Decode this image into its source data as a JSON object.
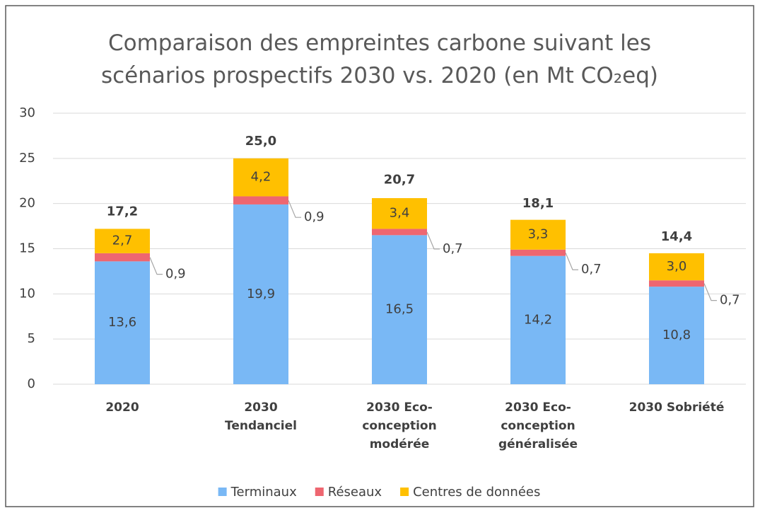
{
  "chart_data": {
    "type": "stacked-bar",
    "title": "Comparaison des empreintes carbone suivant les scénarios prospectifs 2030 vs. 2020 (en Mt CO₂eq)",
    "categories": [
      "2020",
      "2030 Tendanciel",
      "2030 Eco-conception modérée",
      "2030 Eco-conception généralisée",
      "2030 Sobriété"
    ],
    "series": [
      {
        "name": "Terminaux",
        "color": "#79b8f5",
        "values": [
          13.6,
          19.9,
          16.5,
          14.2,
          10.8
        ],
        "value_labels": [
          "13,6",
          "19,9",
          "16,5",
          "14,2",
          "10,8"
        ]
      },
      {
        "name": "Réseaux",
        "color": "#ee6670",
        "values": [
          0.9,
          0.9,
          0.7,
          0.7,
          0.7
        ],
        "value_labels": [
          "0,9",
          "0,9",
          "0,7",
          "0,7",
          "0,7"
        ]
      },
      {
        "name": "Centres de données",
        "color": "#ffc000",
        "values": [
          2.7,
          4.2,
          3.4,
          3.3,
          3.0
        ],
        "value_labels": [
          "2,7",
          "4,2",
          "3,4",
          "3,3",
          "3,0"
        ]
      }
    ],
    "totals": [
      17.2,
      25.0,
      20.7,
      18.1,
      14.4
    ],
    "total_labels": [
      "17,2",
      "25,0",
      "20,7",
      "18,1",
      "14,4"
    ],
    "ylim": [
      0,
      30
    ],
    "yticks": [
      0,
      5,
      10,
      15,
      20,
      25,
      30
    ],
    "grid": true,
    "legend": "bottom"
  }
}
